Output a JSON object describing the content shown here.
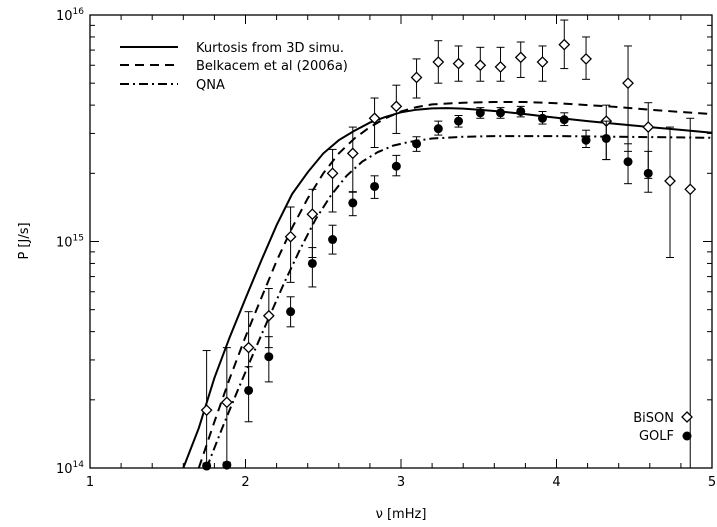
{
  "chart_data": {
    "type": "scatter",
    "title": "",
    "xlabel": "ν [mHz]",
    "ylabel": "P [J/s]",
    "xlim": [
      1,
      5
    ],
    "ylim": [
      100000000000000.0,
      1e+16
    ],
    "yscale": "log",
    "x_ticks": [
      1,
      2,
      3,
      4,
      5
    ],
    "x_tick_labels": [
      "1",
      "2",
      "3",
      "4",
      "5"
    ],
    "y_ticks": [
      100000000000000.0,
      1000000000000000.0,
      1e+16
    ],
    "y_tick_labels": [
      {
        "base": "10",
        "exp": "14"
      },
      {
        "base": "10",
        "exp": "15"
      },
      {
        "base": "10",
        "exp": "16"
      }
    ],
    "grid": false,
    "legend_lines": [
      {
        "name": "Kurtosis from 3D simu.",
        "dash": "solid"
      },
      {
        "name": "Belkacem et al (2006a)",
        "dash": "dashed"
      },
      {
        "name": "QNA",
        "dash": "dashdot"
      }
    ],
    "legend_points": [
      {
        "name": "BiSON",
        "marker": "open-diamond"
      },
      {
        "name": "GOLF",
        "marker": "filled-circle"
      }
    ],
    "series": [
      {
        "name": "Kurtosis from 3D simu.",
        "kind": "line",
        "dash": "solid",
        "x": [
          1.6,
          1.7,
          1.8,
          1.9,
          2.0,
          2.1,
          2.2,
          2.3,
          2.4,
          2.5,
          2.6,
          2.7,
          2.8,
          2.9,
          3.0,
          3.1,
          3.2,
          3.3,
          3.4,
          3.5,
          3.6,
          3.7,
          3.8,
          3.9,
          4.0,
          4.2,
          4.4,
          4.6,
          4.8,
          5.0
        ],
        "y": [
          85000000000000.0,
          150000000000000.0,
          250000000000000.0,
          380000000000000.0,
          560000000000000.0,
          820000000000000.0,
          1180000000000000.0,
          1620000000000000.0,
          2020000000000000.0,
          2450000000000000.0,
          2800000000000000.0,
          3080000000000000.0,
          3350000000000000.0,
          3550000000000000.0,
          3720000000000000.0,
          3820000000000000.0,
          3870000000000000.0,
          3880000000000000.0,
          3860000000000000.0,
          3820000000000000.0,
          3770000000000000.0,
          3710000000000000.0,
          3650000000000000.0,
          3580000000000000.0,
          3520000000000000.0,
          3400000000000000.0,
          3300000000000000.0,
          3200000000000000.0,
          3110000000000000.0,
          3020000000000000.0
        ]
      },
      {
        "name": "Belkacem et al (2006a)",
        "kind": "line",
        "dash": "dashed",
        "x": [
          1.7,
          1.8,
          1.9,
          2.0,
          2.1,
          2.2,
          2.3,
          2.4,
          2.5,
          2.6,
          2.7,
          2.8,
          2.9,
          3.0,
          3.1,
          3.2,
          3.4,
          3.6,
          3.8,
          4.0,
          4.2,
          4.4,
          4.6,
          4.8,
          5.0
        ],
        "y": [
          100000000000000.0,
          160000000000000.0,
          250000000000000.0,
          380000000000000.0,
          560000000000000.0,
          820000000000000.0,
          1150000000000000.0,
          1550000000000000.0,
          2000000000000000.0,
          2450000000000000.0,
          2850000000000000.0,
          3200000000000000.0,
          3500000000000000.0,
          3750000000000000.0,
          3920000000000000.0,
          4030000000000000.0,
          4100000000000000.0,
          4130000000000000.0,
          4130000000000000.0,
          4080000000000000.0,
          4000000000000000.0,
          3920000000000000.0,
          3820000000000000.0,
          3730000000000000.0,
          3650000000000000.0
        ]
      },
      {
        "name": "QNA",
        "kind": "line",
        "dash": "dashdot",
        "x": [
          1.75,
          1.85,
          1.95,
          2.05,
          2.15,
          2.25,
          2.35,
          2.45,
          2.55,
          2.65,
          2.75,
          2.85,
          2.95,
          3.05,
          3.2,
          3.4,
          3.6,
          3.8,
          4.0,
          4.2,
          4.4,
          4.6,
          4.8,
          5.0
        ],
        "y": [
          100000000000000.0,
          150000000000000.0,
          220000000000000.0,
          320000000000000.0,
          460000000000000.0,
          660000000000000.0,
          920000000000000.0,
          1250000000000000.0,
          1600000000000000.0,
          1950000000000000.0,
          2250000000000000.0,
          2480000000000000.0,
          2650000000000000.0,
          2750000000000000.0,
          2850000000000000.0,
          2900000000000000.0,
          2920000000000000.0,
          2920000000000000.0,
          2920000000000000.0,
          2910000000000000.0,
          2900000000000000.0,
          2890000000000000.0,
          2880000000000000.0,
          2870000000000000.0
        ]
      },
      {
        "name": "BiSON",
        "kind": "points",
        "marker": "open-diamond",
        "points": [
          {
            "x": 1.75,
            "y": 180000000000000.0,
            "lo": 100000000000000.0,
            "hi": 330000000000000.0
          },
          {
            "x": 1.88,
            "y": 195000000000000.0,
            "lo": 100000000000000.0,
            "hi": 340000000000000.0
          },
          {
            "x": 2.02,
            "y": 340000000000000.0,
            "lo": 220000000000000.0,
            "hi": 490000000000000.0
          },
          {
            "x": 2.15,
            "y": 470000000000000.0,
            "lo": 340000000000000.0,
            "hi": 620000000000000.0
          },
          {
            "x": 2.29,
            "y": 1050000000000000.0,
            "lo": 660000000000000.0,
            "hi": 1420000000000000.0
          },
          {
            "x": 2.43,
            "y": 1320000000000000.0,
            "lo": 850000000000000.0,
            "hi": 1700000000000000.0
          },
          {
            "x": 2.56,
            "y": 2000000000000000.0,
            "lo": 1350000000000000.0,
            "hi": 2550000000000000.0
          },
          {
            "x": 2.69,
            "y": 2450000000000000.0,
            "lo": 1650000000000000.0,
            "hi": 3200000000000000.0
          },
          {
            "x": 2.83,
            "y": 3500000000000000.0,
            "lo": 2600000000000000.0,
            "hi": 4300000000000000.0
          },
          {
            "x": 2.97,
            "y": 3950000000000000.0,
            "lo": 3000000000000000.0,
            "hi": 4900000000000000.0
          },
          {
            "x": 3.1,
            "y": 5300000000000000.0,
            "lo": 4300000000000000.0,
            "hi": 6400000000000000.0
          },
          {
            "x": 3.24,
            "y": 6200000000000000.0,
            "lo": 5000000000000000.0,
            "hi": 7700000000000000.0
          },
          {
            "x": 3.37,
            "y": 6100000000000000.0,
            "lo": 5100000000000000.0,
            "hi": 7300000000000000.0
          },
          {
            "x": 3.51,
            "y": 6000000000000000.0,
            "lo": 5100000000000000.0,
            "hi": 7200000000000000.0
          },
          {
            "x": 3.64,
            "y": 5900000000000000.0,
            "lo": 5100000000000000.0,
            "hi": 7200000000000000.0
          },
          {
            "x": 3.77,
            "y": 6500000000000000.0,
            "lo": 5300000000000000.0,
            "hi": 7600000000000000.0
          },
          {
            "x": 3.91,
            "y": 6200000000000000.0,
            "lo": 5100000000000000.0,
            "hi": 7300000000000000.0
          },
          {
            "x": 4.05,
            "y": 7400000000000000.0,
            "lo": 5800000000000000.0,
            "hi": 9500000000000000.0
          },
          {
            "x": 4.19,
            "y": 6400000000000000.0,
            "lo": 5200000000000000.0,
            "hi": 8000000000000000.0
          },
          {
            "x": 4.32,
            "y": 3400000000000000.0,
            "lo": 2300000000000000.0,
            "hi": 4000000000000000.0
          },
          {
            "x": 4.46,
            "y": 5000000000000000.0,
            "lo": 2500000000000000.0,
            "hi": 7300000000000000.0
          },
          {
            "x": 4.59,
            "y": 3200000000000000.0,
            "lo": 1900000000000000.0,
            "hi": 4100000000000000.0
          },
          {
            "x": 4.73,
            "y": 1850000000000000.0,
            "lo": 850000000000000.0,
            "hi": 3200000000000000.0
          },
          {
            "x": 4.86,
            "y": 1700000000000000.0,
            "lo": 100000000000000.0,
            "hi": 3500000000000000.0
          }
        ]
      },
      {
        "name": "GOLF",
        "kind": "points",
        "marker": "filled-circle",
        "points": [
          {
            "x": 1.75,
            "y": 102000000000000.0,
            "lo": 100000000000000.0,
            "hi": 105000000000000.0
          },
          {
            "x": 1.88,
            "y": 103000000000000.0,
            "lo": 100000000000000.0,
            "hi": 106000000000000.0
          },
          {
            "x": 2.02,
            "y": 220000000000000.0,
            "lo": 160000000000000.0,
            "hi": 280000000000000.0
          },
          {
            "x": 2.15,
            "y": 310000000000000.0,
            "lo": 240000000000000.0,
            "hi": 380000000000000.0
          },
          {
            "x": 2.29,
            "y": 490000000000000.0,
            "lo": 420000000000000.0,
            "hi": 570000000000000.0
          },
          {
            "x": 2.43,
            "y": 800000000000000.0,
            "lo": 630000000000000.0,
            "hi": 940000000000000.0
          },
          {
            "x": 2.56,
            "y": 1020000000000000.0,
            "lo": 880000000000000.0,
            "hi": 1180000000000000.0
          },
          {
            "x": 2.69,
            "y": 1480000000000000.0,
            "lo": 1300000000000000.0,
            "hi": 1660000000000000.0
          },
          {
            "x": 2.83,
            "y": 1750000000000000.0,
            "lo": 1550000000000000.0,
            "hi": 1950000000000000.0
          },
          {
            "x": 2.97,
            "y": 2150000000000000.0,
            "lo": 1950000000000000.0,
            "hi": 2400000000000000.0
          },
          {
            "x": 3.1,
            "y": 2700000000000000.0,
            "lo": 2500000000000000.0,
            "hi": 2900000000000000.0
          },
          {
            "x": 3.24,
            "y": 3150000000000000.0,
            "lo": 2950000000000000.0,
            "hi": 3400000000000000.0
          },
          {
            "x": 3.37,
            "y": 3400000000000000.0,
            "lo": 3200000000000000.0,
            "hi": 3600000000000000.0
          },
          {
            "x": 3.51,
            "y": 3700000000000000.0,
            "lo": 3500000000000000.0,
            "hi": 3900000000000000.0
          },
          {
            "x": 3.64,
            "y": 3700000000000000.0,
            "lo": 3500000000000000.0,
            "hi": 3900000000000000.0
          },
          {
            "x": 3.77,
            "y": 3750000000000000.0,
            "lo": 3550000000000000.0,
            "hi": 3950000000000000.0
          },
          {
            "x": 3.91,
            "y": 3500000000000000.0,
            "lo": 3300000000000000.0,
            "hi": 3750000000000000.0
          },
          {
            "x": 4.05,
            "y": 3450000000000000.0,
            "lo": 3250000000000000.0,
            "hi": 3700000000000000.0
          },
          {
            "x": 4.19,
            "y": 2800000000000000.0,
            "lo": 2600000000000000.0,
            "hi": 3100000000000000.0
          },
          {
            "x": 4.32,
            "y": 2850000000000000.0,
            "lo": 2300000000000000.0,
            "hi": 3400000000000000.0
          },
          {
            "x": 4.46,
            "y": 2250000000000000.0,
            "lo": 1800000000000000.0,
            "hi": 2700000000000000.0
          },
          {
            "x": 4.59,
            "y": 2000000000000000.0,
            "lo": 1650000000000000.0,
            "hi": 2500000000000000.0
          }
        ]
      }
    ]
  }
}
